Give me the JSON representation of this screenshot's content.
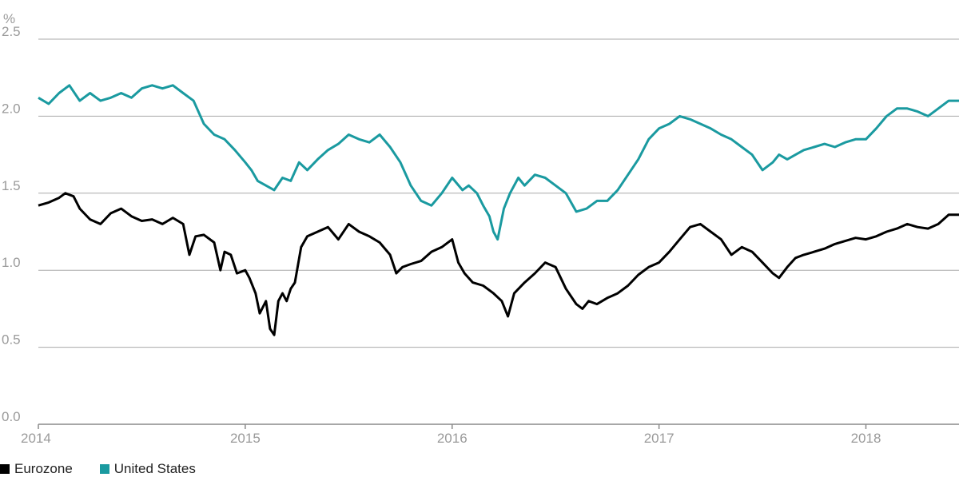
{
  "chart_data": {
    "type": "line",
    "title": "",
    "unit_label": "%",
    "xlabel": "",
    "ylabel": "",
    "ylim": [
      0.0,
      2.5
    ],
    "yticks": [
      "0.0",
      "0.5",
      "1.0",
      "1.5",
      "2.0",
      "2.5"
    ],
    "xlim": [
      2014.0,
      2018.45
    ],
    "xticks": [
      "2014",
      "2015",
      "2016",
      "2017",
      "2018"
    ],
    "grid": "horizontal",
    "legend_position": "bottom-left",
    "series": [
      {
        "name": "Eurozone",
        "color": "#000000",
        "x": [
          2014.0,
          2014.05,
          2014.1,
          2014.13,
          2014.17,
          2014.2,
          2014.25,
          2014.3,
          2014.35,
          2014.4,
          2014.45,
          2014.5,
          2014.55,
          2014.6,
          2014.65,
          2014.7,
          2014.73,
          2014.76,
          2014.8,
          2014.85,
          2014.88,
          2014.9,
          2014.93,
          2014.96,
          2015.0,
          2015.02,
          2015.05,
          2015.07,
          2015.1,
          2015.12,
          2015.14,
          2015.16,
          2015.18,
          2015.2,
          2015.22,
          2015.24,
          2015.27,
          2015.3,
          2015.35,
          2015.4,
          2015.45,
          2015.5,
          2015.55,
          2015.6,
          2015.65,
          2015.7,
          2015.73,
          2015.76,
          2015.8,
          2015.85,
          2015.9,
          2015.95,
          2016.0,
          2016.03,
          2016.06,
          2016.1,
          2016.15,
          2016.2,
          2016.24,
          2016.27,
          2016.3,
          2016.35,
          2016.4,
          2016.45,
          2016.5,
          2016.55,
          2016.6,
          2016.63,
          2016.66,
          2016.7,
          2016.75,
          2016.8,
          2016.85,
          2016.9,
          2016.95,
          2017.0,
          2017.05,
          2017.1,
          2017.15,
          2017.2,
          2017.25,
          2017.3,
          2017.35,
          2017.4,
          2017.45,
          2017.5,
          2017.55,
          2017.58,
          2017.62,
          2017.66,
          2017.7,
          2017.75,
          2017.8,
          2017.85,
          2017.9,
          2017.95,
          2018.0,
          2018.05,
          2018.1,
          2018.15,
          2018.2,
          2018.25,
          2018.3,
          2018.35,
          2018.4,
          2018.45
        ],
        "values": [
          1.42,
          1.44,
          1.47,
          1.5,
          1.48,
          1.4,
          1.33,
          1.3,
          1.37,
          1.4,
          1.35,
          1.32,
          1.33,
          1.3,
          1.34,
          1.3,
          1.1,
          1.22,
          1.23,
          1.18,
          1.0,
          1.12,
          1.1,
          0.98,
          1.0,
          0.95,
          0.85,
          0.72,
          0.8,
          0.62,
          0.58,
          0.8,
          0.85,
          0.8,
          0.88,
          0.92,
          1.15,
          1.22,
          1.25,
          1.28,
          1.2,
          1.3,
          1.25,
          1.22,
          1.18,
          1.1,
          0.98,
          1.02,
          1.04,
          1.06,
          1.12,
          1.15,
          1.2,
          1.05,
          0.98,
          0.92,
          0.9,
          0.85,
          0.8,
          0.7,
          0.85,
          0.92,
          0.98,
          1.05,
          1.02,
          0.88,
          0.78,
          0.75,
          0.8,
          0.78,
          0.82,
          0.85,
          0.9,
          0.97,
          1.02,
          1.05,
          1.12,
          1.2,
          1.28,
          1.3,
          1.25,
          1.2,
          1.1,
          1.15,
          1.12,
          1.05,
          0.98,
          0.95,
          1.02,
          1.08,
          1.1,
          1.12,
          1.14,
          1.17,
          1.19,
          1.21,
          1.2,
          1.22,
          1.25,
          1.27,
          1.3,
          1.28,
          1.27,
          1.3,
          1.36,
          1.36
        ]
      },
      {
        "name": "United States",
        "color": "#1a9aa0",
        "x": [
          2014.0,
          2014.05,
          2014.1,
          2014.15,
          2014.2,
          2014.25,
          2014.3,
          2014.35,
          2014.4,
          2014.45,
          2014.5,
          2014.55,
          2014.6,
          2014.65,
          2014.7,
          2014.75,
          2014.8,
          2014.85,
          2014.9,
          2014.95,
          2015.0,
          2015.03,
          2015.06,
          2015.1,
          2015.14,
          2015.18,
          2015.22,
          2015.26,
          2015.3,
          2015.35,
          2015.4,
          2015.45,
          2015.5,
          2015.55,
          2015.6,
          2015.65,
          2015.7,
          2015.75,
          2015.8,
          2015.85,
          2015.9,
          2015.95,
          2016.0,
          2016.05,
          2016.08,
          2016.12,
          2016.15,
          2016.18,
          2016.2,
          2016.22,
          2016.25,
          2016.28,
          2016.32,
          2016.35,
          2016.4,
          2016.45,
          2016.5,
          2016.55,
          2016.6,
          2016.65,
          2016.7,
          2016.75,
          2016.8,
          2016.85,
          2016.9,
          2016.95,
          2017.0,
          2017.05,
          2017.1,
          2017.15,
          2017.2,
          2017.25,
          2017.3,
          2017.35,
          2017.4,
          2017.45,
          2017.5,
          2017.55,
          2017.58,
          2017.62,
          2017.66,
          2017.7,
          2017.75,
          2017.8,
          2017.85,
          2017.9,
          2017.95,
          2018.0,
          2018.05,
          2018.1,
          2018.15,
          2018.2,
          2018.25,
          2018.3,
          2018.35,
          2018.4,
          2018.45
        ],
        "values": [
          2.12,
          2.08,
          2.15,
          2.2,
          2.1,
          2.15,
          2.1,
          2.12,
          2.15,
          2.12,
          2.18,
          2.2,
          2.18,
          2.2,
          2.15,
          2.1,
          1.95,
          1.88,
          1.85,
          1.78,
          1.7,
          1.65,
          1.58,
          1.55,
          1.52,
          1.6,
          1.58,
          1.7,
          1.65,
          1.72,
          1.78,
          1.82,
          1.88,
          1.85,
          1.83,
          1.88,
          1.8,
          1.7,
          1.55,
          1.45,
          1.42,
          1.5,
          1.6,
          1.52,
          1.55,
          1.5,
          1.42,
          1.35,
          1.25,
          1.2,
          1.4,
          1.5,
          1.6,
          1.55,
          1.62,
          1.6,
          1.55,
          1.5,
          1.38,
          1.4,
          1.45,
          1.45,
          1.52,
          1.62,
          1.72,
          1.85,
          1.92,
          1.95,
          2.0,
          1.98,
          1.95,
          1.92,
          1.88,
          1.85,
          1.8,
          1.75,
          1.65,
          1.7,
          1.75,
          1.72,
          1.75,
          1.78,
          1.8,
          1.82,
          1.8,
          1.83,
          1.85,
          1.85,
          1.92,
          2.0,
          2.05,
          2.05,
          2.03,
          2.0,
          2.05,
          2.1,
          2.1
        ]
      }
    ]
  }
}
